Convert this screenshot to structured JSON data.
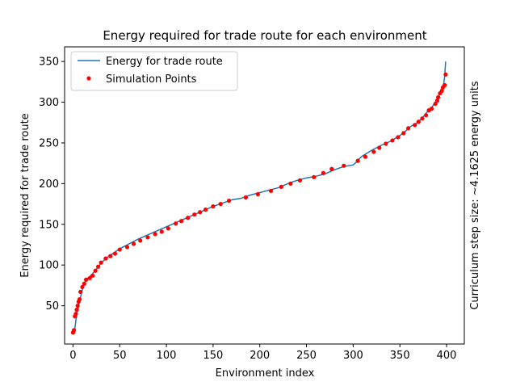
{
  "chart_data": {
    "type": "line",
    "title": "Energy required for trade route for each environment",
    "xlabel": "Environment index",
    "ylabel": "Energy required for trade route",
    "right_annotation": "Curriculum step size: ~4.1625 energy units",
    "annotation_color": "#0000ff",
    "xlim": [
      -9,
      419
    ],
    "ylim": [
      3,
      368
    ],
    "xticks": [
      0,
      50,
      100,
      150,
      200,
      250,
      300,
      350,
      400
    ],
    "yticks": [
      50,
      100,
      150,
      200,
      250,
      300,
      350
    ],
    "grid": false,
    "legend_position": "top-left",
    "series": [
      {
        "name": "Energy for trade route",
        "kind": "line",
        "color": "#1f77b4",
        "x": [
          0,
          2,
          4,
          6,
          8,
          10,
          13,
          16,
          20,
          25,
          30,
          35,
          40,
          50,
          60,
          70,
          80,
          90,
          100,
          110,
          120,
          130,
          140,
          150,
          160,
          170,
          180,
          190,
          200,
          210,
          220,
          230,
          240,
          250,
          260,
          270,
          280,
          290,
          300,
          303,
          305,
          310,
          320,
          330,
          340,
          350,
          355,
          360,
          370,
          375,
          380,
          385,
          390,
          393,
          395,
          397,
          398,
          399
        ],
        "y": [
          17,
          22,
          40,
          50,
          60,
          70,
          80,
          84,
          88,
          95,
          102,
          108,
          112,
          120,
          126,
          132,
          137,
          142,
          147,
          152,
          157,
          162,
          167,
          172,
          176,
          180,
          182,
          186,
          189,
          192,
          195,
          200,
          204,
          207,
          209,
          212,
          217,
          221,
          223,
          226,
          229,
          234,
          241,
          247,
          252,
          259,
          263,
          269,
          276,
          282,
          289,
          295,
          304,
          311,
          317,
          323,
          332,
          350
        ]
      },
      {
        "name": "Simulation Points",
        "kind": "scatter",
        "color": "#ff0000",
        "x": [
          0,
          1,
          2,
          3,
          4,
          5,
          6,
          7,
          8,
          10,
          12,
          14,
          18,
          21,
          24,
          27,
          30,
          35,
          40,
          45,
          50,
          58,
          65,
          72,
          80,
          88,
          95,
          102,
          110,
          116,
          123,
          130,
          136,
          142,
          150,
          158,
          167,
          185,
          198,
          212,
          223,
          233,
          243,
          258,
          268,
          277,
          290,
          305,
          313,
          322,
          328,
          335,
          342,
          348,
          354,
          359,
          366,
          370,
          374,
          378,
          381,
          384,
          388,
          390,
          391,
          393,
          395,
          396,
          398,
          399
        ],
        "y": [
          17,
          20,
          37,
          40,
          45,
          50,
          55,
          58,
          67,
          73,
          77,
          82,
          84,
          87,
          93,
          98,
          103,
          108,
          111,
          114,
          119,
          122,
          126,
          130,
          134,
          138,
          141,
          145,
          151,
          154,
          158,
          162,
          165,
          168,
          172,
          175,
          179,
          183,
          187,
          191,
          196,
          200,
          204,
          208,
          213,
          218,
          222,
          228,
          233,
          239,
          244,
          249,
          253,
          257,
          262,
          268,
          272,
          276,
          280,
          284,
          290,
          292,
          298,
          302,
          306,
          311,
          314,
          318,
          321,
          334
        ]
      }
    ]
  }
}
